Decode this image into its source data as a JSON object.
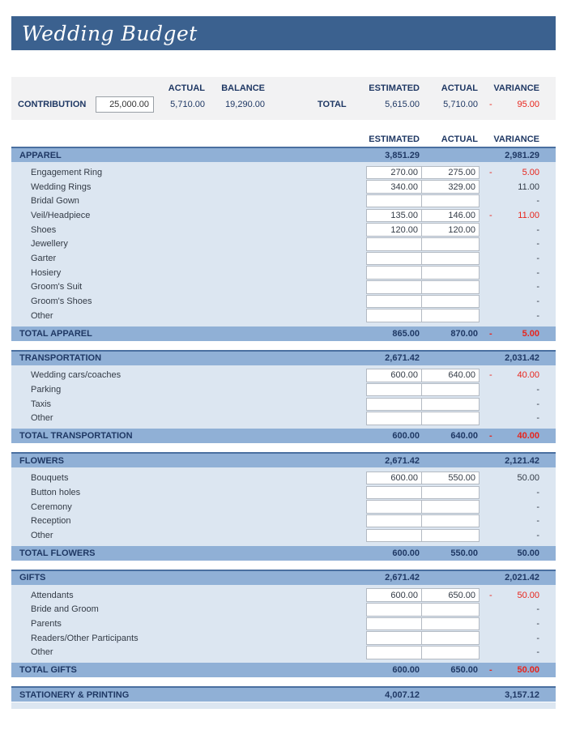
{
  "title": "Wedding Budget",
  "negative_sign": "-",
  "colors": {
    "title_bar": "#3b618f",
    "section_blue": "#90b0d6",
    "body_blue": "#dce6f1",
    "navy_text": "#1f3864",
    "negative_red": "#e8241b",
    "summary_background": "#f2f2f3"
  },
  "summary": {
    "contribution_label": "CONTRIBUTION",
    "contribution_value": "25,000.00",
    "actual_header": "ACTUAL",
    "balance_header": "BALANCE",
    "actual_value": "5,710.00",
    "balance_value": "19,290.00",
    "total_label": "TOTAL",
    "estimated_header": "ESTIMATED",
    "actual2_header": "ACTUAL",
    "variance_header": "VARIANCE",
    "total_estimated": "5,615.00",
    "total_actual": "5,710.00",
    "total_variance": "95.00",
    "total_variance_negative": true
  },
  "column_headers": {
    "estimated": "ESTIMATED",
    "actual": "ACTUAL",
    "variance": "VARIANCE"
  },
  "sections": [
    {
      "name": "APPAREL",
      "estimated": "3,851.29",
      "actual": "",
      "variance": "2,981.29",
      "items": [
        {
          "label": "Engagement Ring",
          "estimated": "270.00",
          "actual": "275.00",
          "variance": "5.00",
          "negative": true
        },
        {
          "label": "Wedding Rings",
          "estimated": "340.00",
          "actual": "329.00",
          "variance": "11.00",
          "negative": false
        },
        {
          "label": "Bridal Gown",
          "estimated": "",
          "actual": "",
          "variance": "-",
          "negative": false
        },
        {
          "label": "Veil/Headpiece",
          "estimated": "135.00",
          "actual": "146.00",
          "variance": "11.00",
          "negative": true
        },
        {
          "label": "Shoes",
          "estimated": "120.00",
          "actual": "120.00",
          "variance": "-",
          "negative": false
        },
        {
          "label": "Jewellery",
          "estimated": "",
          "actual": "",
          "variance": "-",
          "negative": false
        },
        {
          "label": "Garter",
          "estimated": "",
          "actual": "",
          "variance": "-",
          "negative": false
        },
        {
          "label": "Hosiery",
          "estimated": "",
          "actual": "",
          "variance": "-",
          "negative": false
        },
        {
          "label": "Groom's Suit",
          "estimated": "",
          "actual": "",
          "variance": "-",
          "negative": false
        },
        {
          "label": "Groom's Shoes",
          "estimated": "",
          "actual": "",
          "variance": "-",
          "negative": false
        },
        {
          "label": "Other",
          "estimated": "",
          "actual": "",
          "variance": "-",
          "negative": false
        }
      ],
      "total": {
        "label": "TOTAL APPAREL",
        "estimated": "865.00",
        "actual": "870.00",
        "variance": "5.00",
        "negative": true
      }
    },
    {
      "name": "TRANSPORTATION",
      "estimated": "2,671.42",
      "actual": "",
      "variance": "2,031.42",
      "items": [
        {
          "label": "Wedding cars/coaches",
          "estimated": "600.00",
          "actual": "640.00",
          "variance": "40.00",
          "negative": true
        },
        {
          "label": "Parking",
          "estimated": "",
          "actual": "",
          "variance": "-",
          "negative": false
        },
        {
          "label": "Taxis",
          "estimated": "",
          "actual": "",
          "variance": "-",
          "negative": false
        },
        {
          "label": "Other",
          "estimated": "",
          "actual": "",
          "variance": "-",
          "negative": false
        }
      ],
      "total": {
        "label": "TOTAL TRANSPORTATION",
        "estimated": "600.00",
        "actual": "640.00",
        "variance": "40.00",
        "negative": true
      }
    },
    {
      "name": "FLOWERS",
      "estimated": "2,671.42",
      "actual": "",
      "variance": "2,121.42",
      "items": [
        {
          "label": "Bouquets",
          "estimated": "600.00",
          "actual": "550.00",
          "variance": "50.00",
          "negative": false
        },
        {
          "label": "Button holes",
          "estimated": "",
          "actual": "",
          "variance": "-",
          "negative": false
        },
        {
          "label": "Ceremony",
          "estimated": "",
          "actual": "",
          "variance": "-",
          "negative": false
        },
        {
          "label": "Reception",
          "estimated": "",
          "actual": "",
          "variance": "-",
          "negative": false
        },
        {
          "label": "Other",
          "estimated": "",
          "actual": "",
          "variance": "-",
          "negative": false
        }
      ],
      "total": {
        "label": "TOTAL FLOWERS",
        "estimated": "600.00",
        "actual": "550.00",
        "variance": "50.00",
        "negative": false
      }
    },
    {
      "name": "GIFTS",
      "estimated": "2,671.42",
      "actual": "",
      "variance": "2,021.42",
      "items": [
        {
          "label": "Attendants",
          "estimated": "600.00",
          "actual": "650.00",
          "variance": "50.00",
          "negative": true
        },
        {
          "label": "Bride and Groom",
          "estimated": "",
          "actual": "",
          "variance": "-",
          "negative": false
        },
        {
          "label": "Parents",
          "estimated": "",
          "actual": "",
          "variance": "-",
          "negative": false
        },
        {
          "label": "Readers/Other Participants",
          "estimated": "",
          "actual": "",
          "variance": "-",
          "negative": false
        },
        {
          "label": "Other",
          "estimated": "",
          "actual": "",
          "variance": "-",
          "negative": false
        }
      ],
      "total": {
        "label": "TOTAL GIFTS",
        "estimated": "600.00",
        "actual": "650.00",
        "variance": "50.00",
        "negative": true
      }
    },
    {
      "name": "STATIONERY & PRINTING",
      "estimated": "4,007.12",
      "actual": "",
      "variance": "3,157.12",
      "items": [],
      "total": null,
      "partial": true
    }
  ]
}
